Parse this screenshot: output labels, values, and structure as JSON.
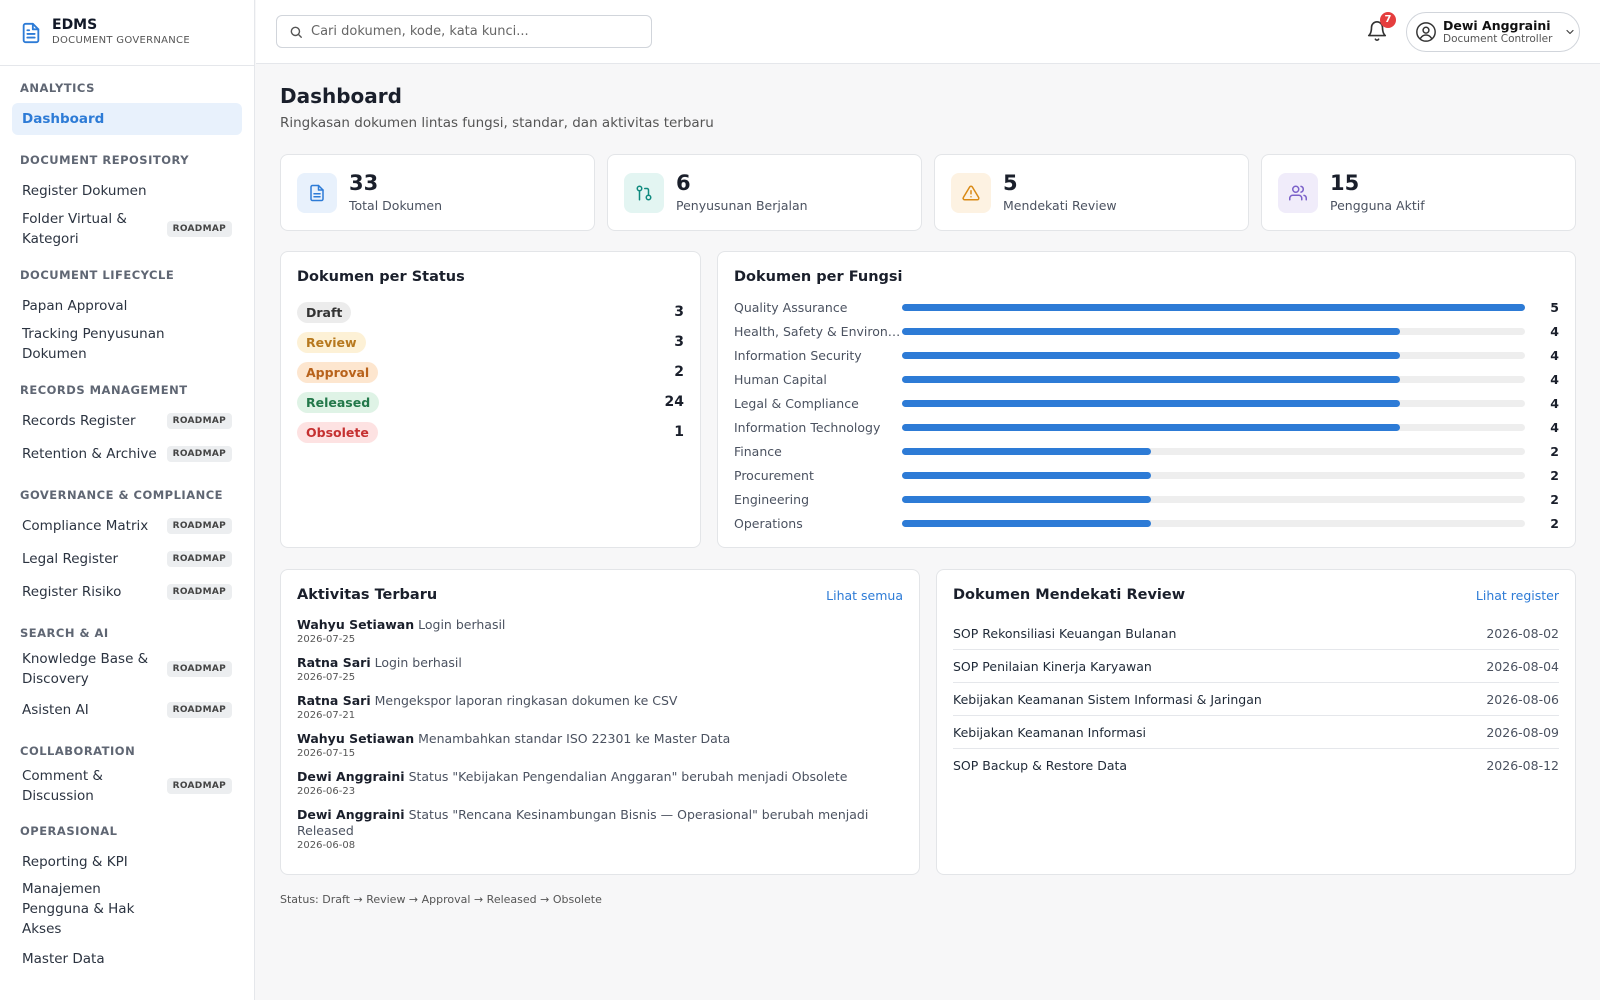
{
  "brand": {
    "title": "EDMS",
    "subtitle": "DOCUMENT GOVERNANCE"
  },
  "sidebar": {
    "sections": [
      {
        "label": "ANALYTICS",
        "items": [
          {
            "label": "Dashboard",
            "active": true
          }
        ]
      },
      {
        "label": "DOCUMENT REPOSITORY",
        "items": [
          {
            "label": "Register Dokumen"
          },
          {
            "label": "Folder Virtual & Kategori",
            "badge": "ROADMAP"
          }
        ]
      },
      {
        "label": "DOCUMENT LIFECYCLE",
        "items": [
          {
            "label": "Papan Approval"
          },
          {
            "label": "Tracking Penyusunan Dokumen"
          }
        ]
      },
      {
        "label": "RECORDS MANAGEMENT",
        "items": [
          {
            "label": "Records Register",
            "badge": "ROADMAP"
          },
          {
            "label": "Retention & Archive",
            "badge": "ROADMAP"
          }
        ]
      },
      {
        "label": "GOVERNANCE & COMPLIANCE",
        "items": [
          {
            "label": "Compliance Matrix",
            "badge": "ROADMAP"
          },
          {
            "label": "Legal Register",
            "badge": "ROADMAP"
          },
          {
            "label": "Register Risiko",
            "badge": "ROADMAP"
          }
        ]
      },
      {
        "label": "SEARCH & AI",
        "items": [
          {
            "label": "Knowledge Base & Discovery",
            "badge": "ROADMAP"
          },
          {
            "label": "Asisten AI",
            "badge": "ROADMAP"
          }
        ]
      },
      {
        "label": "COLLABORATION",
        "items": [
          {
            "label": "Comment & Discussion",
            "badge": "ROADMAP"
          }
        ]
      },
      {
        "label": "OPERASIONAL",
        "items": [
          {
            "label": "Reporting & KPI"
          },
          {
            "label": "Manajemen Pengguna & Hak Akses"
          },
          {
            "label": "Master Data"
          }
        ]
      }
    ]
  },
  "header": {
    "search_placeholder": "Cari dokumen, kode, kata kunci...",
    "notification_count": "7",
    "user": {
      "name": "Dewi Anggraini",
      "role": "Document Controller"
    }
  },
  "page": {
    "title": "Dashboard",
    "subtitle": "Ringkasan dokumen lintas fungsi, standar, dan aktivitas terbaru"
  },
  "stats": [
    {
      "value": "33",
      "label": "Total Dokumen",
      "icon": "document-icon",
      "color": "#2d7bd6",
      "bg": "#e8f1fc"
    },
    {
      "value": "6",
      "label": "Penyusunan Berjalan",
      "icon": "git-pull-icon",
      "color": "#0f8a7e",
      "bg": "#e3f5f2"
    },
    {
      "value": "5",
      "label": "Mendekati Review",
      "icon": "warning-icon",
      "color": "#d98a16",
      "bg": "#fdf2e2"
    },
    {
      "value": "15",
      "label": "Pengguna Aktif",
      "icon": "users-icon",
      "color": "#7b61c9",
      "bg": "#f0ecfa"
    }
  ],
  "status_card": {
    "title": "Dokumen per Status",
    "rows": [
      {
        "label": "Draft",
        "count": "3",
        "bg": "#ececec",
        "fg": "#333333"
      },
      {
        "label": "Review",
        "count": "3",
        "bg": "#fdf1d6",
        "fg": "#b7791f"
      },
      {
        "label": "Approval",
        "count": "2",
        "bg": "#fde6cf",
        "fg": "#b8621b"
      },
      {
        "label": "Released",
        "count": "24",
        "bg": "#dff3e6",
        "fg": "#23784a"
      },
      {
        "label": "Obsolete",
        "count": "1",
        "bg": "#fde2e2",
        "fg": "#c53030"
      }
    ]
  },
  "fungsi_card": {
    "title": "Dokumen per Fungsi",
    "max": 5,
    "rows": [
      {
        "label": "Quality Assurance",
        "value": 5
      },
      {
        "label": "Health, Safety & Environment",
        "value": 4
      },
      {
        "label": "Information Security",
        "value": 4
      },
      {
        "label": "Human Capital",
        "value": 4
      },
      {
        "label": "Legal & Compliance",
        "value": 4
      },
      {
        "label": "Information Technology",
        "value": 4
      },
      {
        "label": "Finance",
        "value": 2
      },
      {
        "label": "Procurement",
        "value": 2
      },
      {
        "label": "Engineering",
        "value": 2
      },
      {
        "label": "Operations",
        "value": 2
      }
    ]
  },
  "activity": {
    "title": "Aktivitas Terbaru",
    "link": "Lihat semua",
    "items": [
      {
        "who": "Wahyu Setiawan",
        "what": "Login berhasil",
        "date": "2026-07-25"
      },
      {
        "who": "Ratna Sari",
        "what": "Login berhasil",
        "date": "2026-07-25"
      },
      {
        "who": "Ratna Sari",
        "what": "Mengekspor laporan ringkasan dokumen ke CSV",
        "date": "2026-07-21"
      },
      {
        "who": "Wahyu Setiawan",
        "what": "Menambahkan standar ISO 22301 ke Master Data",
        "date": "2026-07-15"
      },
      {
        "who": "Dewi Anggraini",
        "what": "Status \"Kebijakan Pengendalian Anggaran\" berubah menjadi Obsolete",
        "date": "2026-06-23"
      },
      {
        "who": "Dewi Anggraini",
        "what": "Status \"Rencana Kesinambungan Bisnis — Operasional\" berubah menjadi Released",
        "date": "2026-06-08"
      }
    ]
  },
  "review": {
    "title": "Dokumen Mendekati Review",
    "link": "Lihat register",
    "items": [
      {
        "name": "SOP Rekonsiliasi Keuangan Bulanan",
        "date": "2026-08-02"
      },
      {
        "name": "SOP Penilaian Kinerja Karyawan",
        "date": "2026-08-04"
      },
      {
        "name": "Kebijakan Keamanan Sistem Informasi & Jaringan",
        "date": "2026-08-06"
      },
      {
        "name": "Kebijakan Keamanan Informasi",
        "date": "2026-08-09"
      },
      {
        "name": "SOP Backup & Restore Data",
        "date": "2026-08-12"
      }
    ]
  },
  "footer_note": "Status: Draft → Review → Approval → Released → Obsolete"
}
